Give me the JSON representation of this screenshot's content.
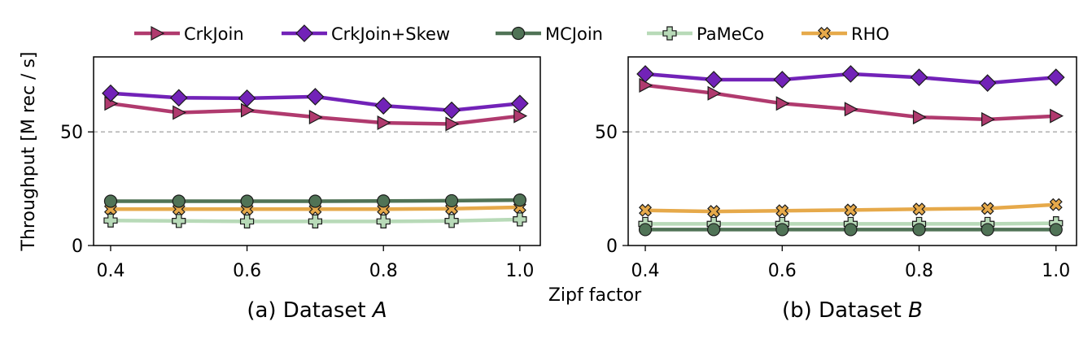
{
  "ylabel": "Throughput [M rec / s]",
  "xlabel": "Zipf factor",
  "legend": [
    {
      "name": "CrkJoin",
      "color": "#b03a6e",
      "marker": "triangle-right"
    },
    {
      "name": "CrkJoin+Skew",
      "color": "#7222b8",
      "marker": "diamond"
    },
    {
      "name": "MCJoin",
      "color": "#507356",
      "marker": "circle"
    },
    {
      "name": "PaMeCo",
      "color": "#b8dab8",
      "marker": "plus"
    },
    {
      "name": "RHO",
      "color": "#e6a94a",
      "marker": "x"
    }
  ],
  "chart_data": [
    {
      "type": "line",
      "title": "(a) Dataset A",
      "title_prefix": "(a) Dataset ",
      "title_var": "A",
      "x": [
        0.4,
        0.5,
        0.6,
        0.7,
        0.8,
        0.9,
        1.0
      ],
      "xticks": [
        "0.4",
        "0.6",
        "0.8",
        "1.0"
      ],
      "yticks": [
        "0",
        "50"
      ],
      "xlim": [
        0.375,
        1.03
      ],
      "ylim": [
        0,
        83
      ],
      "reference_line": 50,
      "series": [
        {
          "name": "CrkJoin",
          "values": [
            62.5,
            58.5,
            59.5,
            56.5,
            54.0,
            53.5,
            57.0
          ]
        },
        {
          "name": "CrkJoin+Skew",
          "values": [
            67.0,
            65.0,
            64.8,
            65.5,
            61.5,
            59.5,
            62.5
          ]
        },
        {
          "name": "MCJoin",
          "values": [
            19.5,
            19.5,
            19.5,
            19.5,
            19.6,
            19.7,
            20.0
          ]
        },
        {
          "name": "PaMeCo",
          "values": [
            11.0,
            10.8,
            10.6,
            10.6,
            10.6,
            10.8,
            11.5
          ]
        },
        {
          "name": "RHO",
          "values": [
            16.0,
            16.0,
            16.0,
            16.0,
            16.0,
            16.2,
            16.8
          ]
        }
      ]
    },
    {
      "type": "line",
      "title": "(b) Dataset B",
      "title_prefix": "(b) Dataset ",
      "title_var": "B",
      "x": [
        0.4,
        0.5,
        0.6,
        0.7,
        0.8,
        0.9,
        1.0
      ],
      "xticks": [
        "0.4",
        "0.6",
        "0.8",
        "1.0"
      ],
      "yticks": [
        "0",
        "50"
      ],
      "xlim": [
        0.375,
        1.03
      ],
      "ylim": [
        0,
        83
      ],
      "reference_line": 50,
      "series": [
        {
          "name": "CrkJoin",
          "values": [
            70.5,
            67.0,
            62.5,
            60.0,
            56.5,
            55.5,
            57.0
          ]
        },
        {
          "name": "CrkJoin+Skew",
          "values": [
            75.5,
            73.0,
            73.0,
            75.5,
            74.0,
            71.5,
            74.0
          ]
        },
        {
          "name": "MCJoin",
          "values": [
            7.0,
            7.0,
            7.0,
            7.0,
            7.0,
            7.0,
            7.0
          ]
        },
        {
          "name": "PaMeCo",
          "values": [
            9.5,
            9.5,
            9.5,
            9.5,
            9.5,
            9.5,
            9.8
          ]
        },
        {
          "name": "RHO",
          "values": [
            15.5,
            15.0,
            15.3,
            15.6,
            16.0,
            16.3,
            18.0
          ]
        }
      ]
    }
  ]
}
